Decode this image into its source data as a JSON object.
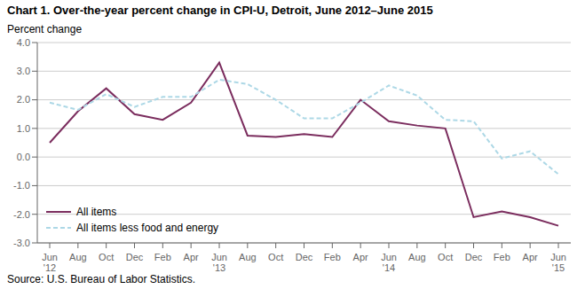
{
  "chart_data": {
    "type": "line",
    "title": "Chart 1. Over-the-year percent change in CPI-U, Detroit, June 2012–June 2015",
    "y_label": "Percent change",
    "source": "Source: U.S. Bureau of Labor Statistics.",
    "categories": [
      "Jun\n'12",
      "Aug",
      "Oct",
      "Dec",
      "Feb",
      "Apr",
      "Jun\n'13",
      "Aug",
      "Oct",
      "Dec",
      "Feb",
      "Apr",
      "Jun\n'14",
      "Aug",
      "Oct",
      "Dec",
      "Feb",
      "Apr",
      "Jun\n'15"
    ],
    "series": [
      {
        "name": "All items",
        "color": "#7B2D5E",
        "line_style": "solid",
        "values": [
          0.5,
          1.6,
          2.4,
          1.5,
          1.3,
          1.9,
          3.3,
          0.75,
          0.7,
          0.8,
          0.7,
          2.0,
          1.25,
          1.1,
          1.0,
          -2.1,
          -1.9,
          -2.1,
          -2.4
        ]
      },
      {
        "name": "All items less food and energy",
        "color": "#ADD8E6",
        "line_style": "dashed",
        "values": [
          1.9,
          1.65,
          2.2,
          1.75,
          2.1,
          2.1,
          2.7,
          2.55,
          2.0,
          1.35,
          1.35,
          1.9,
          2.5,
          2.15,
          1.3,
          1.25,
          -0.05,
          0.2,
          -0.6
        ]
      }
    ],
    "ylim": [
      -3.0,
      4.0
    ],
    "yticks": [
      {
        "value": -3,
        "label": "-3.0"
      },
      {
        "value": -2,
        "label": "-2.0"
      },
      {
        "value": -1,
        "label": "-1.0"
      },
      {
        "value": 0,
        "label": "0.0"
      },
      {
        "value": 1,
        "label": "1.0"
      },
      {
        "value": 2,
        "label": "2.0"
      },
      {
        "value": 3,
        "label": "3.0"
      },
      {
        "value": 4,
        "label": "4.0"
      }
    ],
    "grid": true,
    "legend": "lower left"
  }
}
